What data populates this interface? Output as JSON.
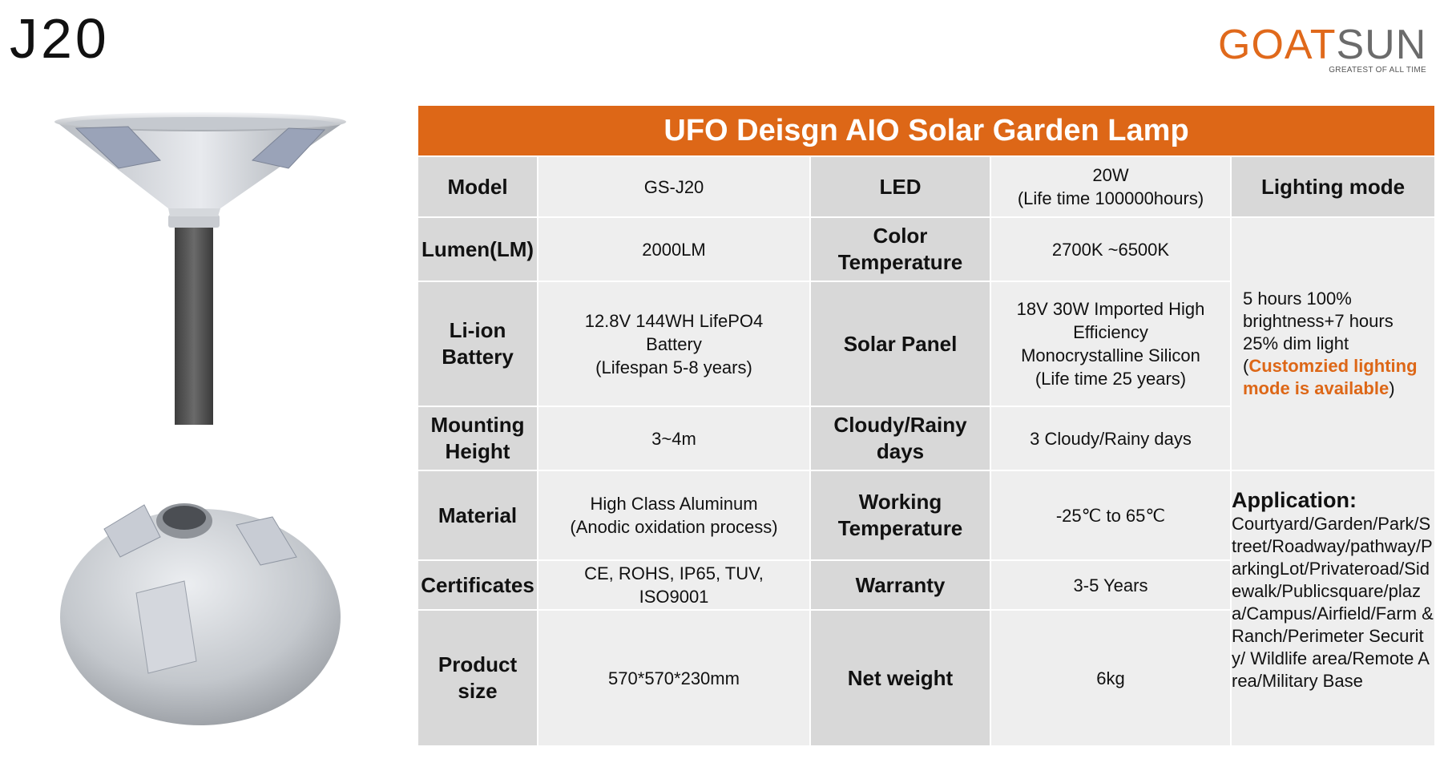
{
  "page": {
    "code": "J20"
  },
  "brand": {
    "logo_go": "GO",
    "logo_at": "AT",
    "logo_sun": "SUN",
    "tagline": "GREATEST OF ALL TIME",
    "accent_color": "#dd6717"
  },
  "table": {
    "title": "UFO Deisgn AIO Solar Garden Lamp",
    "rows": [
      {
        "label1": "Model",
        "value1": "GS-J20",
        "label2": "LED",
        "value2_line1": "20W",
        "value2_line2": "(Life time 100000hours)"
      },
      {
        "label1": "Lumen(LM)",
        "value1": "2000LM",
        "label2": "Color Temperature",
        "value2": "2700K ~6500K"
      },
      {
        "label1": "Li-ion Battery",
        "value1_line1": "12.8V 144WH  LifePO4",
        "value1_line2": "Battery",
        "value1_line3": "(Lifespan 5-8 years)",
        "label2": "Solar Panel",
        "value2_line1": "18V 30W Imported High",
        "value2_line2": "Efficiency",
        "value2_line3": "Monocrystalline Silicon",
        "value2_line4": "(Life time 25 years)"
      },
      {
        "label1": "Mounting Height",
        "value1": "3~4m",
        "label2": "Cloudy/Rainy days",
        "value2": "3 Cloudy/Rainy days"
      },
      {
        "label1": "Material",
        "value1_line1": "High Class Aluminum",
        "value1_line2": "(Anodic oxidation process)",
        "label2": "Working Temperature",
        "value2": "-25℃ to 65℃"
      },
      {
        "label1": "Certificates",
        "value1_line1": "CE, ROHS, IP65, TUV,",
        "value1_line2": "ISO9001",
        "label2": "Warranty",
        "value2": "3-5 Years"
      },
      {
        "label1": "Product size",
        "value1": "570*570*230mm",
        "label2": "Net weight",
        "value2": "6kg"
      }
    ],
    "lighting_mode": {
      "label": "Lighting mode",
      "text_before": "5 hours 100% brightness+7 hours 25% dim light (",
      "text_highlight": "Customzied lighting mode is available",
      "text_after": ")"
    },
    "application": {
      "title": "Application:",
      "text": "Courtyard/Garden/Park/Street/Roadway/pathway/ParkingLot/Privateroad/Sidewalk/Publicsquare/plaza/Campus/Airfield/Farm & Ranch/Perimeter Security/ Wildlife area/Remote Area/Military Base"
    }
  }
}
